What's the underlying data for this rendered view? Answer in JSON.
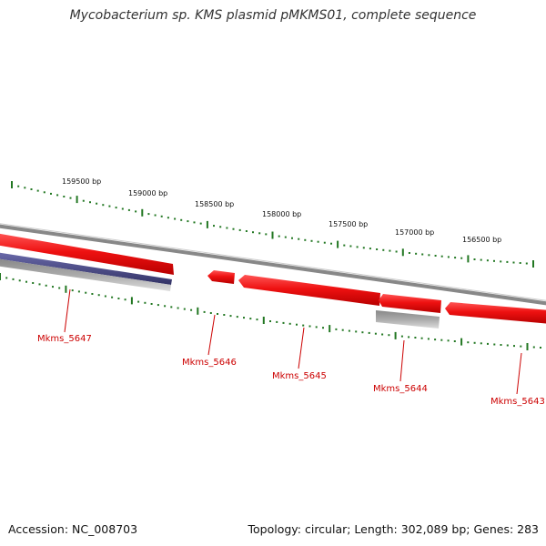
{
  "title": "Mycobacterium sp. KMS plasmid pMKMS01, complete sequence",
  "footer": {
    "accession": "Accession: NC_008703",
    "summary": "Topology: circular; Length: 302,089 bp; Genes: 283"
  },
  "colors": {
    "backbone": "#888888",
    "gene_forward": "#ee1111",
    "gene_reverse": "#ee1111",
    "gene_other": "#aaaaaa",
    "gene_blue": "#4a4a8a",
    "tick": "#227722",
    "gene_label": "#cc0000"
  },
  "scale_ticks": [
    "159500 bp",
    "159000 bp",
    "158500 bp",
    "158000 bp",
    "157500 bp",
    "157000 bp",
    "156500 bp"
  ],
  "genes": [
    "Mkms_5647",
    "Mkms_5646",
    "Mkms_5645",
    "Mkms_5644",
    "Mkms_5643"
  ]
}
